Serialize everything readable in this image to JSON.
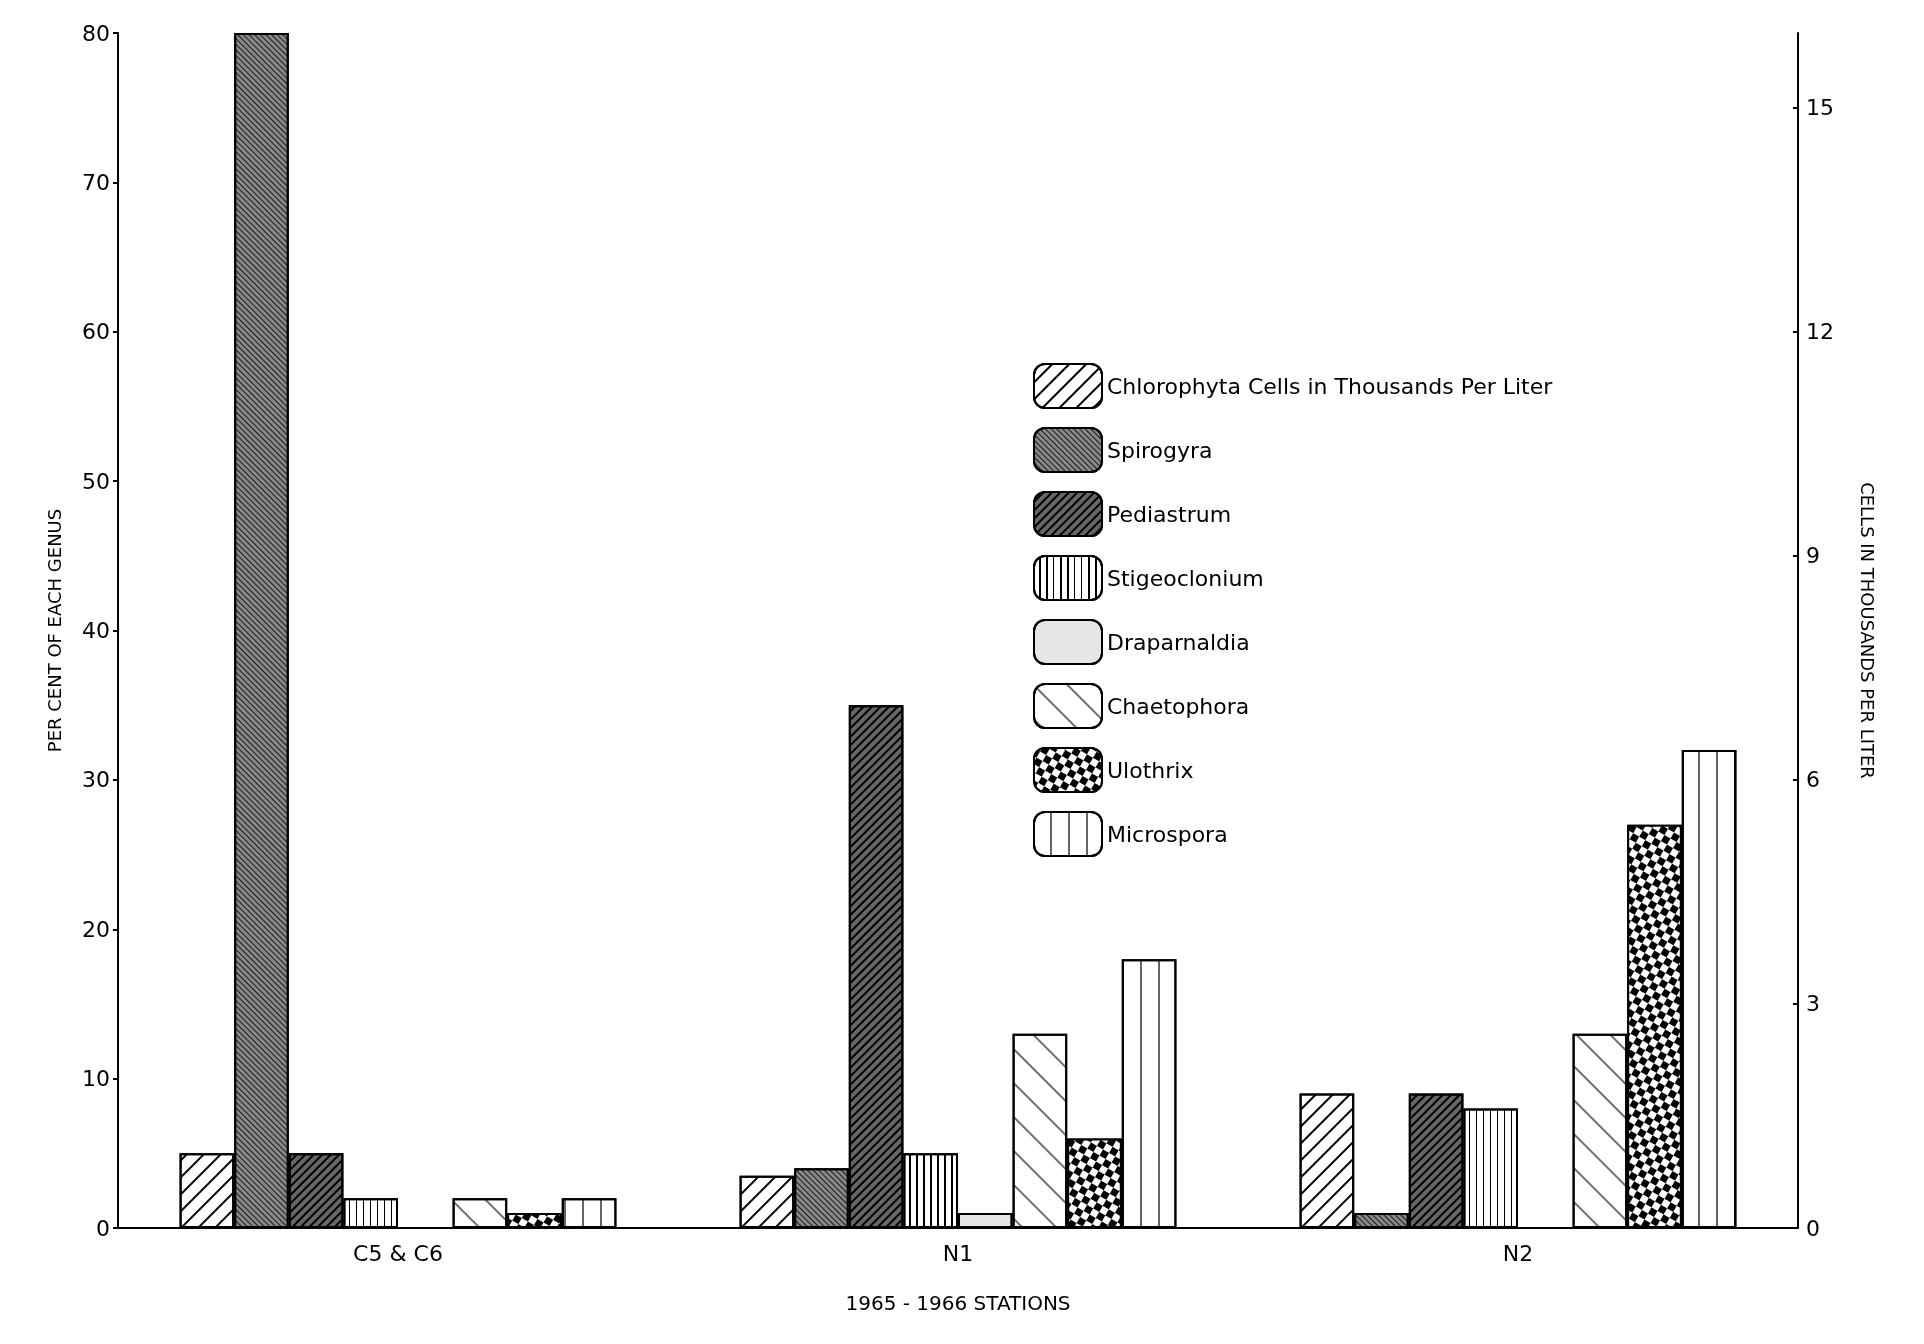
{
  "chart_data": {
    "type": "bar",
    "xlabel": "1965 - 1966 STATIONS",
    "ylabel": "PER CENT OF EACH GENUS",
    "y2label": "CELLS IN THOUSANDS PER LITER",
    "categories": [
      "C5 & C6",
      "N1",
      "N2"
    ],
    "series": [
      {
        "name": "Chlorophyta Cells in Thousands Per Liter",
        "color": "#ffffff",
        "axis": "y2",
        "values": [
          1.0,
          0.7,
          1.8
        ]
      },
      {
        "name": "Spirogyra",
        "color": "#888888",
        "values": [
          80,
          4,
          1
        ]
      },
      {
        "name": "Pediastrum",
        "color": "#666666",
        "values": [
          5,
          35,
          9
        ]
      },
      {
        "name": "Stigeoclonium",
        "color": "#ffffff",
        "values": [
          2,
          5,
          8
        ]
      },
      {
        "name": "Draparnaldia",
        "color": "#e6e6e6",
        "values": [
          0,
          1,
          0
        ]
      },
      {
        "name": "Chaetophora",
        "color": "#ffffff",
        "values": [
          2,
          13,
          13
        ]
      },
      {
        "name": "Ulothrix",
        "color": "#000000",
        "values": [
          1,
          6,
          27
        ]
      },
      {
        "name": "Microspora",
        "color": "#ffffff",
        "values": [
          2,
          18,
          32
        ]
      }
    ],
    "ylim": [
      0,
      80
    ],
    "yticks": [
      0,
      10,
      20,
      30,
      40,
      50,
      60,
      70,
      80
    ],
    "y2lim": [
      0,
      16
    ],
    "y2ticks": [
      0,
      3,
      6,
      9,
      12,
      15
    ],
    "grid": false,
    "legend": "top right"
  }
}
